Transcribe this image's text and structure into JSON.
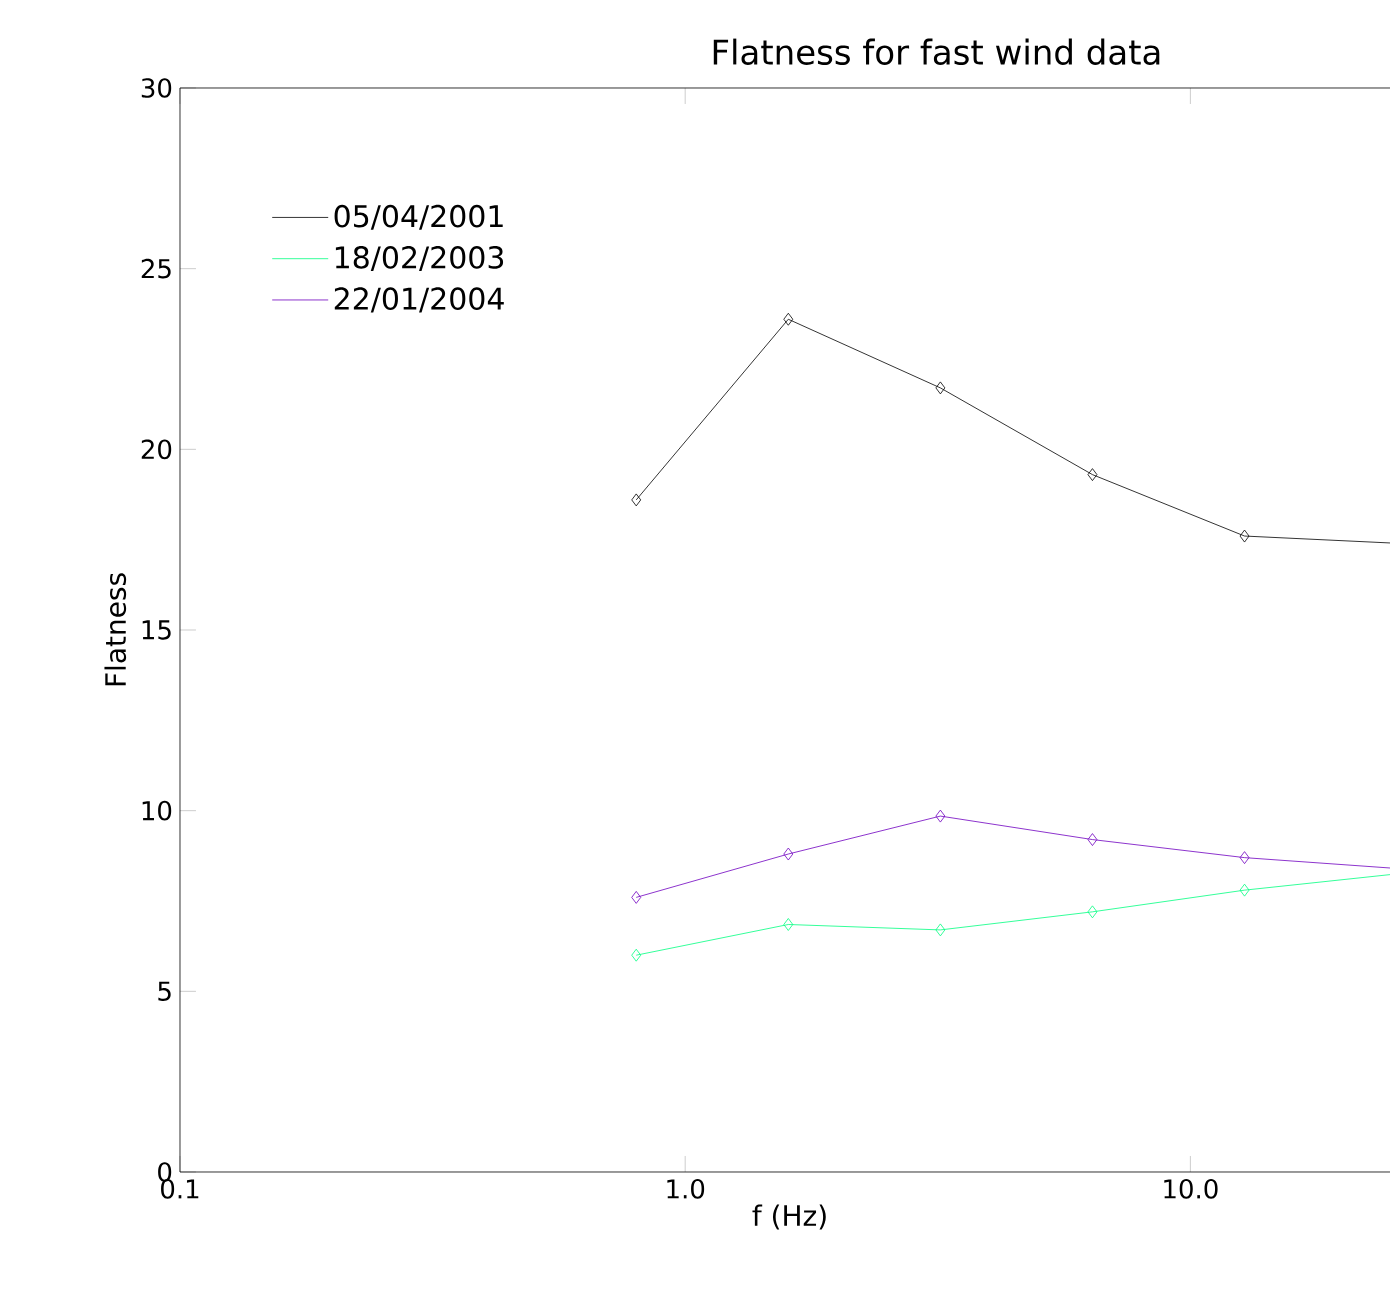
{
  "chart_data": {
    "type": "line",
    "title": "Flatness for fast wind data",
    "xlabel": "f (Hz)",
    "ylabel": "Flatness",
    "log": "x",
    "xlim": [
      0.1,
      26
    ],
    "ylim": [
      0,
      30
    ],
    "xticks": [
      {
        "value": 0.1,
        "label": "0.1"
      },
      {
        "value": 1,
        "label": "1.0"
      },
      {
        "value": 10,
        "label": "10.0"
      }
    ],
    "yticks": [
      0,
      5,
      10,
      15,
      20,
      25,
      30
    ],
    "x": [
      0.8,
      1.6,
      3.2,
      6.4,
      12.8,
      25.6
    ],
    "marker": "diamond",
    "line_style": "solid",
    "legend": "top left",
    "grid": false,
    "series": [
      {
        "name": "05/04/2001",
        "color": "#000000",
        "values": [
          18.6,
          23.6,
          21.7,
          19.3,
          17.6,
          17.4
        ]
      },
      {
        "name": "18/02/2003",
        "color": "#00ff80",
        "values": [
          6.0,
          6.85,
          6.7,
          7.2,
          7.8,
          8.25
        ]
      },
      {
        "name": "22/01/2004",
        "color": "#7000c0",
        "values": [
          7.6,
          8.8,
          9.85,
          9.2,
          8.7,
          8.4
        ]
      }
    ]
  }
}
